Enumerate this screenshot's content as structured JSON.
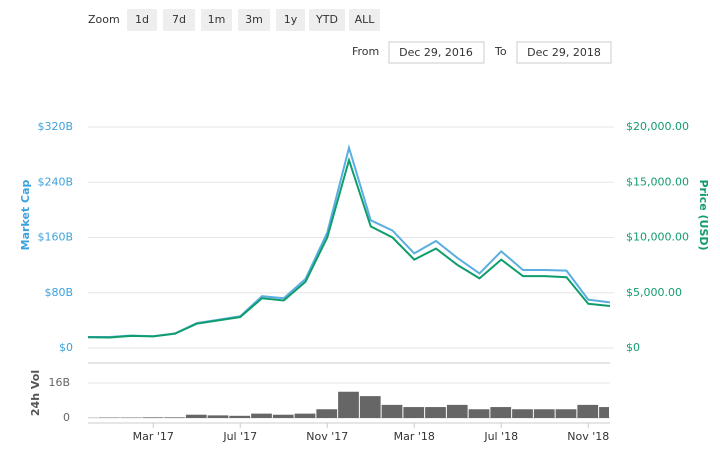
{
  "controls": {
    "zoom_label": "Zoom",
    "zoom_buttons": [
      "1d",
      "7d",
      "1m",
      "3m",
      "1y",
      "YTD",
      "ALL"
    ],
    "from_label": "From",
    "from_value": "Dec 29, 2016",
    "to_label": "To",
    "to_value": "Dec 29, 2018"
  },
  "chart_data": [
    {
      "type": "line",
      "ylabel": "Market Cap",
      "y2label": "Price (USD)",
      "x": [
        "2016-12",
        "2017-01",
        "2017-02",
        "2017-03",
        "2017-04",
        "2017-05",
        "2017-06",
        "2017-07",
        "2017-08",
        "2017-09",
        "2017-10",
        "2017-11",
        "2017-12",
        "2018-01",
        "2018-02",
        "2018-03",
        "2018-04",
        "2018-05",
        "2018-06",
        "2018-07",
        "2018-08",
        "2018-09",
        "2018-10",
        "2018-11",
        "2018-12"
      ],
      "xlim": [
        "2016-12",
        "2018-12"
      ],
      "ylim": [
        0,
        320
      ],
      "y2lim": [
        0,
        20000
      ],
      "yticks": [
        {
          "value": 0,
          "label": "$0"
        },
        {
          "value": 80,
          "label": "$80B"
        },
        {
          "value": 160,
          "label": "$160B"
        },
        {
          "value": 240,
          "label": "$240B"
        },
        {
          "value": 320,
          "label": "$320B"
        }
      ],
      "y2ticks": [
        {
          "value": 0,
          "label": "$0"
        },
        {
          "value": 5000,
          "label": "$5,000.00"
        },
        {
          "value": 10000,
          "label": "$10,000.00"
        },
        {
          "value": 15000,
          "label": "$15,000.00"
        },
        {
          "value": 20000,
          "label": "$20,000.00"
        }
      ],
      "grid": true,
      "series": [
        {
          "color": "#5aaee0",
          "axis": "y",
          "values": [
            16,
            16,
            18,
            17,
            21,
            36,
            41,
            46,
            75,
            72,
            100,
            167,
            290,
            185,
            170,
            137,
            155,
            130,
            108,
            140,
            113,
            113,
            112,
            70,
            66
          ]
        },
        {
          "color": "#109d6e",
          "axis": "y2",
          "values": [
            970,
            950,
            1100,
            1050,
            1300,
            2200,
            2500,
            2800,
            4500,
            4300,
            6000,
            10000,
            17000,
            11000,
            10000,
            8000,
            9000,
            7500,
            6300,
            8000,
            6500,
            6500,
            6400,
            4000,
            3800
          ]
        }
      ]
    },
    {
      "type": "bar",
      "ylabel": "24h Vol",
      "x": [
        "2016-12",
        "2017-01",
        "2017-02",
        "2017-03",
        "2017-04",
        "2017-05",
        "2017-06",
        "2017-07",
        "2017-08",
        "2017-09",
        "2017-10",
        "2017-11",
        "2017-12",
        "2018-01",
        "2018-02",
        "2018-03",
        "2018-04",
        "2018-05",
        "2018-06",
        "2018-07",
        "2018-08",
        "2018-09",
        "2018-10",
        "2018-11",
        "2018-12"
      ],
      "xlim": [
        "2016-12",
        "2018-12"
      ],
      "xticks": [
        {
          "value": "2017-03",
          "label": "Mar '17"
        },
        {
          "value": "2017-07",
          "label": "Jul '17"
        },
        {
          "value": "2017-11",
          "label": "Nov '17"
        },
        {
          "value": "2018-03",
          "label": "Mar '18"
        },
        {
          "value": "2018-07",
          "label": "Jul '18"
        },
        {
          "value": "2018-11",
          "label": "Nov '18"
        }
      ],
      "ylim": [
        0,
        16
      ],
      "yticks": [
        0,
        {
          "value": 16,
          "label": "16B"
        }
      ],
      "color": "#666666",
      "values": [
        0.1,
        0.2,
        0.2,
        0.3,
        0.3,
        1.5,
        1.2,
        1,
        2,
        1.5,
        2,
        4,
        12,
        10,
        6,
        5,
        5,
        6,
        4,
        5,
        4,
        4,
        4,
        6,
        5
      ]
    }
  ]
}
